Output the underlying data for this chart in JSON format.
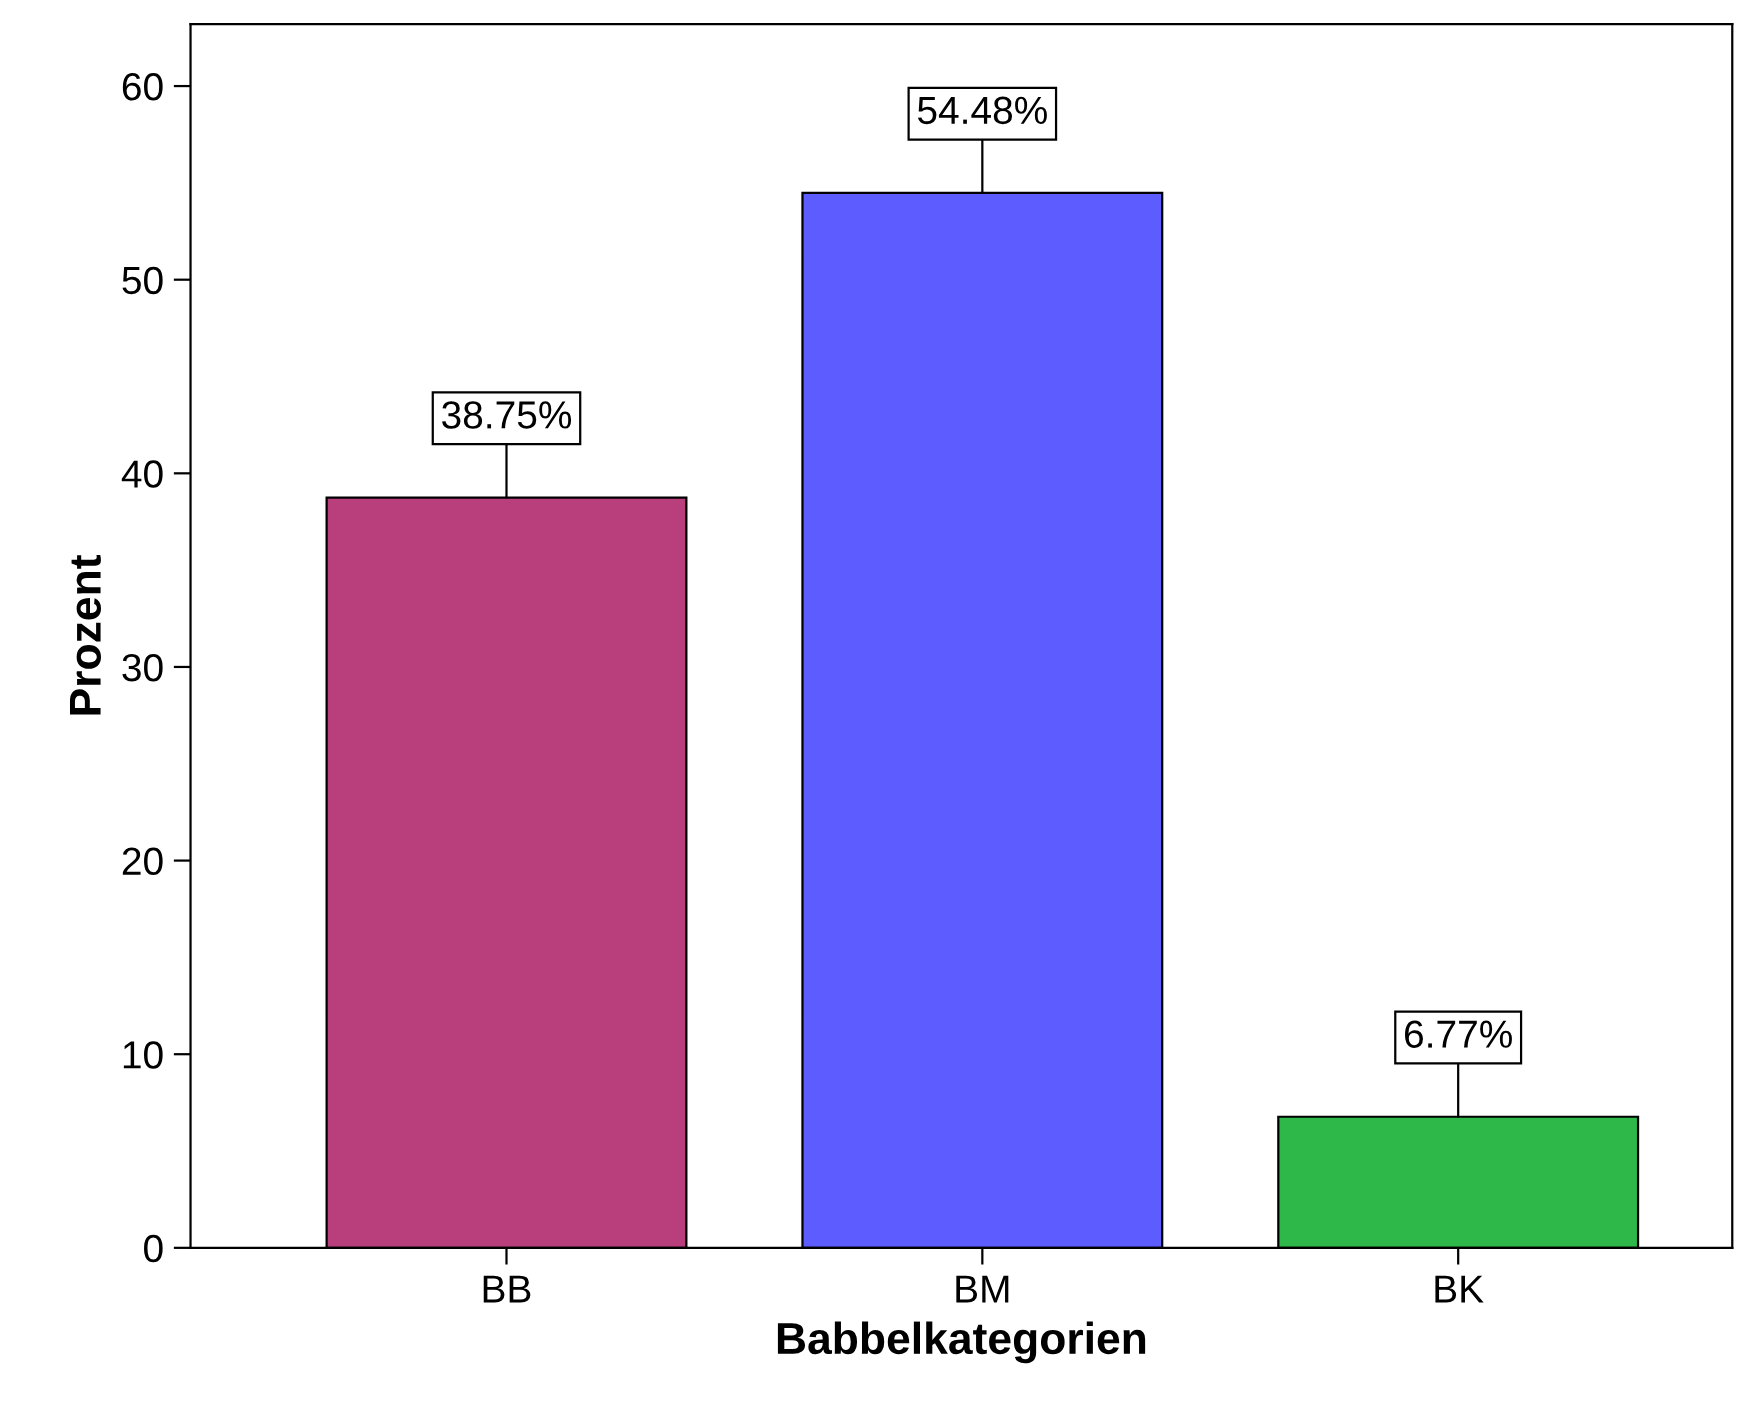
{
  "chart_data": {
    "type": "bar",
    "xlabel": "Babbelkategorien",
    "ylabel": "Prozent",
    "categories": [
      "BB",
      "BM",
      "BK"
    ],
    "values": [
      38.75,
      54.48,
      6.77
    ],
    "colors": [
      "#b93f7c",
      "#5c5cff",
      "#2eb84a"
    ],
    "value_labels": [
      "38.75%",
      "54.48%",
      "6.77%"
    ],
    "ylim": [
      0,
      63.2
    ],
    "yticks": [
      0,
      10,
      20,
      30,
      40,
      50,
      60
    ],
    "grid": false,
    "legend": false
  }
}
